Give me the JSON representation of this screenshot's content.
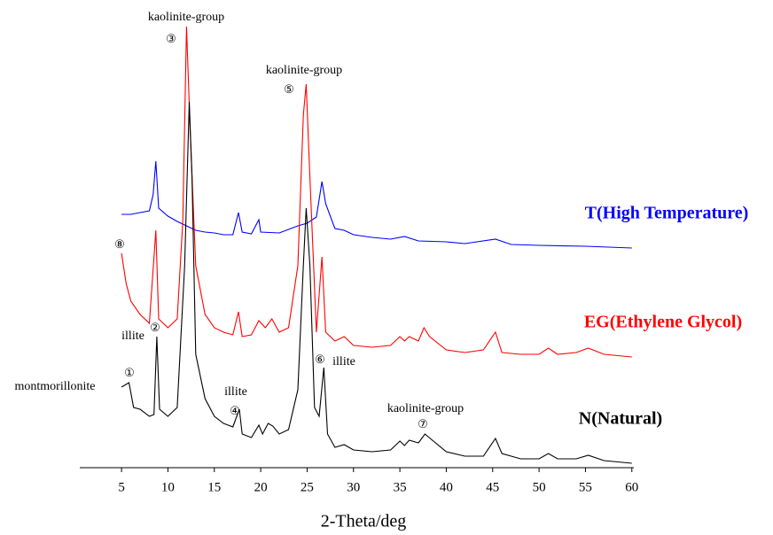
{
  "chart_data": {
    "type": "line",
    "xlabel": "2-Theta/deg",
    "xlim": [
      0.5,
      60.5
    ],
    "xticks": [
      5,
      10,
      15,
      20,
      25,
      30,
      35,
      40,
      45,
      50,
      55,
      60
    ],
    "ylim": [
      0,
      520
    ],
    "series": [
      {
        "name": "T(High Temperature)",
        "color": "#0000ff",
        "x": [
          5,
          6,
          7,
          8,
          8.4,
          8.7,
          9,
          10,
          11,
          12,
          13,
          14,
          15,
          16,
          17,
          17.6,
          18,
          19,
          19.8,
          20,
          22,
          24,
          25,
          26,
          26.6,
          27,
          28,
          29,
          30,
          32,
          34,
          35.5,
          37,
          40,
          42,
          45.3,
          47,
          50,
          55,
          60
        ],
        "values": [
          286,
          286,
          288,
          290,
          308,
          346,
          293,
          284,
          278,
          273,
          268,
          266,
          265,
          263,
          263,
          288,
          266,
          264,
          280,
          266,
          265,
          273,
          276,
          283,
          323,
          298,
          270,
          268,
          263,
          260,
          258,
          261,
          256,
          255,
          253,
          258,
          252,
          251,
          250,
          248
        ]
      },
      {
        "name": "EG(Ethylene Glycol)",
        "color": "#ff0000",
        "x": [
          5,
          5.5,
          6,
          7,
          8,
          8.7,
          9,
          10,
          11,
          11.6,
          12,
          12.4,
          13,
          14,
          15,
          16,
          17,
          17.6,
          18,
          19,
          19.8,
          20.5,
          21.2,
          22,
          23,
          24,
          24.6,
          24.9,
          25.3,
          26,
          26.6,
          27,
          28,
          29,
          30,
          32,
          34,
          35,
          35.5,
          36,
          37,
          37.6,
          38.2,
          40,
          42,
          44,
          45.3,
          46,
          48,
          50,
          51,
          52,
          54,
          55.3,
          57,
          60
        ],
        "values": [
          242,
          208,
          188,
          173,
          163,
          268,
          168,
          158,
          168,
          278,
          498,
          378,
          228,
          173,
          158,
          153,
          150,
          176,
          148,
          150,
          166,
          158,
          168,
          153,
          158,
          228,
          398,
          433,
          328,
          153,
          238,
          153,
          143,
          148,
          138,
          136,
          138,
          148,
          143,
          148,
          143,
          158,
          148,
          133,
          130,
          133,
          153,
          130,
          128,
          128,
          135,
          128,
          130,
          135,
          128,
          125
        ]
      },
      {
        "name": "N(Natural)",
        "color": "#000000",
        "x": [
          5,
          5.8,
          6.3,
          7,
          8,
          8.5,
          8.8,
          9.1,
          10,
          11,
          11.8,
          12.3,
          12.6,
          13,
          14,
          15,
          16,
          17,
          17.7,
          18,
          19,
          19.8,
          20.2,
          20.8,
          21.3,
          22,
          23,
          24,
          24.6,
          24.9,
          25.3,
          25.8,
          26.3,
          26.8,
          27.2,
          28,
          29,
          30,
          32,
          34,
          35,
          35.5,
          36,
          37,
          37.7,
          38.5,
          40,
          42,
          44,
          45.3,
          46,
          48,
          50,
          51,
          52,
          54,
          55.3,
          57,
          60
        ],
        "values": [
          91,
          96,
          68,
          66,
          58,
          60,
          148,
          66,
          58,
          68,
          228,
          413,
          328,
          128,
          78,
          58,
          50,
          46,
          66,
          38,
          34,
          48,
          38,
          50,
          47,
          38,
          43,
          88,
          228,
          293,
          228,
          68,
          58,
          113,
          38,
          23,
          26,
          20,
          18,
          20,
          30,
          25,
          31,
          28,
          38,
          31,
          18,
          13,
          13,
          33,
          16,
          10,
          10,
          16,
          10,
          10,
          14,
          8,
          5
        ]
      }
    ],
    "annotations": [
      {
        "text": "kaolinite-group",
        "marker": "③"
      },
      {
        "text": "kaolinite-group",
        "marker": "⑤"
      },
      {
        "marker": "⑧"
      },
      {
        "text": "illite",
        "marker": "②"
      },
      {
        "text": "montmorillonite",
        "marker": "①"
      },
      {
        "text": "illite",
        "marker": "④"
      },
      {
        "text": "illite",
        "marker": "⑥"
      },
      {
        "text": "kaolinite-group",
        "marker": "⑦"
      }
    ]
  }
}
